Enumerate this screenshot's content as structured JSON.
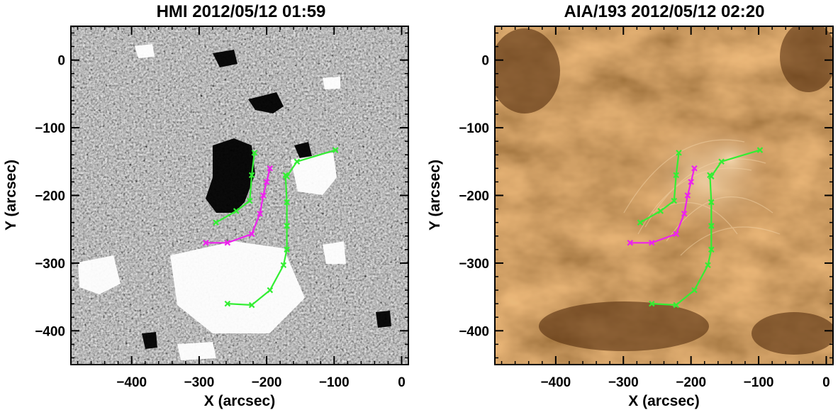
{
  "chart_data": [
    {
      "type": "scatter",
      "image": "HMI magnetogram (grayscale)",
      "title": "HMI 2012/05/12 01:59",
      "xlabel": "X (arcsec)",
      "ylabel": "Y (arcsec)",
      "xlim": [
        -490,
        10
      ],
      "ylim": [
        -450,
        50
      ],
      "xticks": [
        -400,
        -300,
        -200,
        -100,
        0
      ],
      "yticks": [
        0,
        -100,
        -200,
        -300,
        -400
      ],
      "colors": {
        "background_gray": "#7c7c7c",
        "green": "#33ee33",
        "magenta": "#ee22ee"
      },
      "series": [
        {
          "color": "green",
          "x": [
            -275,
            -245,
            -225,
            -222,
            -218
          ],
          "y": [
            -240,
            -223,
            -208,
            -170,
            -137
          ]
        },
        {
          "color": "magenta",
          "x": [
            -290,
            -258,
            -222,
            -210,
            -205,
            -200,
            -195
          ],
          "y": [
            -270,
            -270,
            -257,
            -227,
            -200,
            -180,
            -160
          ]
        },
        {
          "color": "green",
          "x": [
            -258,
            -222,
            -195,
            -175,
            -170,
            -170,
            -170,
            -172,
            -170,
            -155,
            -98
          ],
          "y": [
            -360,
            -362,
            -340,
            -303,
            -280,
            -245,
            -210,
            -170,
            -172,
            -150,
            -133
          ]
        }
      ]
    },
    {
      "type": "scatter",
      "image": "AIA 193 EUV image (brown colormap)",
      "title": "AIA/193 2012/05/12 02:20",
      "xlabel": "X (arcsec)",
      "ylabel": "Y (arcsec)",
      "xlim": [
        -490,
        10
      ],
      "ylim": [
        -450,
        50
      ],
      "xticks": [
        -400,
        -300,
        -200,
        -100,
        0
      ],
      "yticks": [
        0,
        -100,
        -200,
        -300,
        -400
      ],
      "colors": {
        "background_brown": "#a76a33",
        "green": "#33ee33",
        "magenta": "#ee22ee"
      },
      "series": [
        {
          "color": "green",
          "x": [
            -275,
            -245,
            -225,
            -222,
            -218
          ],
          "y": [
            -240,
            -223,
            -208,
            -170,
            -137
          ]
        },
        {
          "color": "magenta",
          "x": [
            -290,
            -258,
            -222,
            -210,
            -205,
            -200,
            -195
          ],
          "y": [
            -270,
            -270,
            -257,
            -227,
            -200,
            -180,
            -160
          ]
        },
        {
          "color": "green",
          "x": [
            -258,
            -222,
            -195,
            -175,
            -170,
            -170,
            -170,
            -172,
            -170,
            -155,
            -98
          ],
          "y": [
            -360,
            -362,
            -340,
            -303,
            -280,
            -245,
            -210,
            -170,
            -172,
            -150,
            -133
          ]
        }
      ]
    }
  ]
}
